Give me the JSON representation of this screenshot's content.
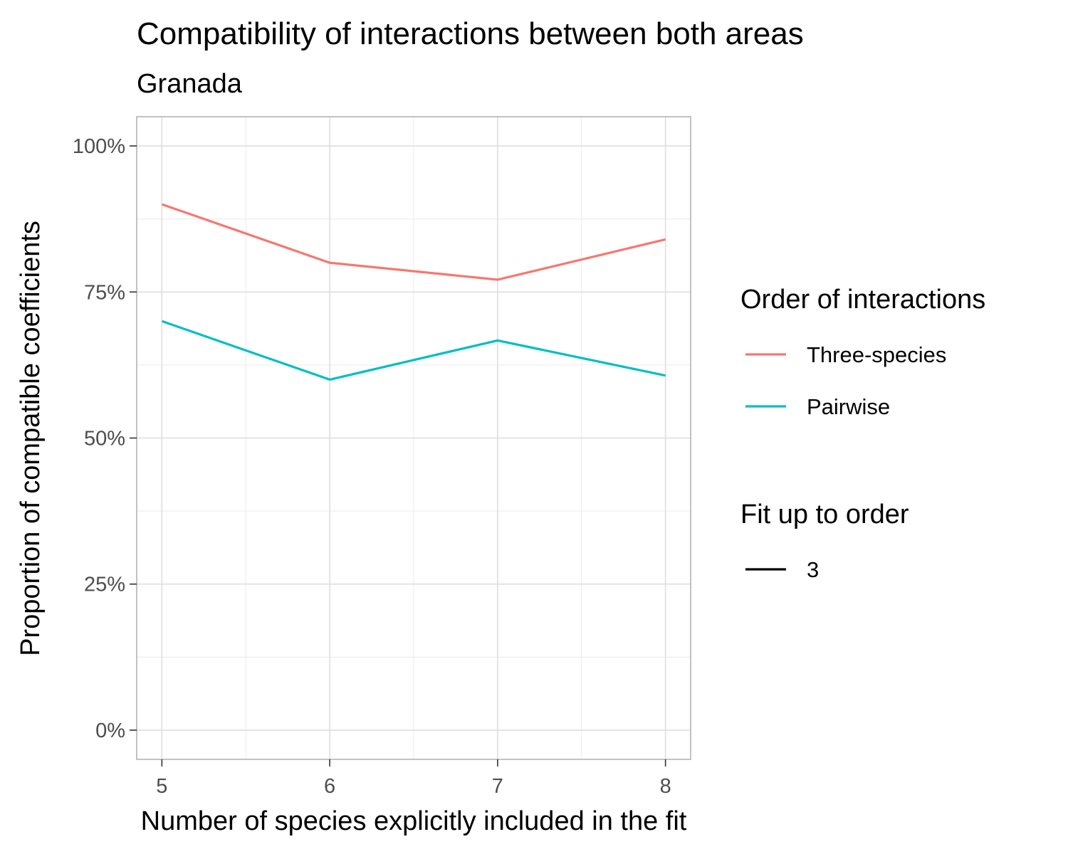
{
  "chart_data": {
    "type": "line",
    "title": "Compatibility of interactions between both areas",
    "subtitle": "Granada",
    "xlabel": "Number of species explicitly included in the fit",
    "ylabel": "Proportion of compatible coefficients",
    "x": [
      5,
      6,
      7,
      8
    ],
    "x_ticks": [
      5,
      6,
      7,
      8
    ],
    "xlim": [
      4.85,
      8.15
    ],
    "ylim": [
      -0.05,
      1.05
    ],
    "y_ticks": [
      0,
      0.25,
      0.5,
      0.75,
      1.0
    ],
    "y_tick_labels": [
      "0%",
      "25%",
      "50%",
      "75%",
      "100%"
    ],
    "grid": true,
    "legend_position": "right",
    "series": [
      {
        "name": "Three-species",
        "color": "#F8766D",
        "values": [
          0.9,
          0.8,
          0.771,
          0.84
        ]
      },
      {
        "name": "Pairwise",
        "color": "#00BFC4",
        "values": [
          0.7,
          0.6,
          0.667,
          0.607
        ]
      }
    ],
    "legends": [
      {
        "title": "Order of interactions",
        "entries": [
          {
            "label": "Three-species",
            "color": "#F8766D"
          },
          {
            "label": "Pairwise",
            "color": "#00BFC4"
          }
        ]
      },
      {
        "title": "Fit up to order",
        "entries": [
          {
            "label": "3",
            "color": "#000000"
          }
        ]
      }
    ]
  }
}
